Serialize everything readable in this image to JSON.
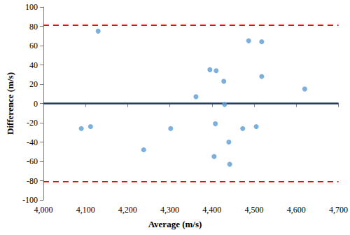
{
  "chart_data": {
    "type": "scatter",
    "x_label": "Average (m/s)",
    "y_label": "Difference (m/s)",
    "x": [
      4090,
      4112,
      4130,
      4238,
      4302,
      4362,
      4395,
      4405,
      4408,
      4410,
      4428,
      4430,
      4440,
      4442,
      4473,
      4487,
      4505,
      4518,
      4518,
      4620
    ],
    "values": [
      -26,
      -24,
      75,
      -48,
      -26,
      7,
      35,
      -55,
      -21,
      34,
      23,
      -1,
      -40,
      -63,
      -26,
      65,
      -24,
      64,
      28,
      15
    ],
    "color": "#5b9bd5",
    "marker": "circle",
    "xlim": [
      4000,
      4700
    ],
    "xticks": [
      4000,
      4100,
      4200,
      4300,
      4400,
      4500,
      4600,
      4700
    ],
    "ylim": [
      -100,
      100
    ],
    "yticks": [
      -100,
      -80,
      -60,
      -40,
      -20,
      0,
      20,
      40,
      60,
      80,
      100
    ],
    "grid": false,
    "reference_lines": [
      {
        "value": 0,
        "color": "#1f3864",
        "line_style": "solid"
      },
      {
        "value": 81,
        "color": "#ff0000",
        "line_style": "dashed"
      },
      {
        "value": -81,
        "color": "#ff0000",
        "line_style": "dashed"
      }
    ]
  }
}
